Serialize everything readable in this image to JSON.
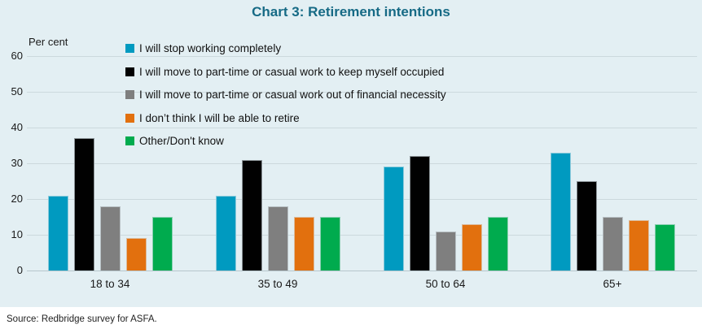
{
  "title": "Chart 3: Retirement intentions",
  "source": "Source: Redbridge survey for ASFA.",
  "chart_data": {
    "type": "bar",
    "title": "Chart 3: Retirement intentions",
    "xlabel": "",
    "ylabel": "Per cent",
    "ylim": [
      0,
      60
    ],
    "ytick_step": 10,
    "yticks": [
      0,
      10,
      20,
      30,
      40,
      50,
      60
    ],
    "grid": true,
    "legend_position": "top-left-inside",
    "categories": [
      "18 to 34",
      "35 to 49",
      "50 to 64",
      "65+"
    ],
    "series": [
      {
        "name": "I will stop working completely",
        "color": "#009ac0",
        "values": [
          21,
          21,
          29,
          33
        ]
      },
      {
        "name": "I will move to part-time or casual work to keep myself occupied",
        "color": "#010101",
        "values": [
          37,
          31,
          32,
          25
        ]
      },
      {
        "name": "I will move to part-time or casual work out of financial necessity",
        "color": "#7f7f7f",
        "values": [
          18,
          18,
          11,
          15
        ]
      },
      {
        "name": "I don’t think I will be able to retire",
        "color": "#e2700e",
        "values": [
          9,
          15,
          13,
          14
        ]
      },
      {
        "name": "Other/Don't know",
        "color": "#00ab4e",
        "values": [
          15,
          15,
          15,
          13
        ]
      }
    ],
    "colors": {
      "panel_background": "#e3eff3",
      "title_text": "#166a85",
      "gridline": "#ccd9dd",
      "axis_text": "#1a1a1a"
    }
  }
}
